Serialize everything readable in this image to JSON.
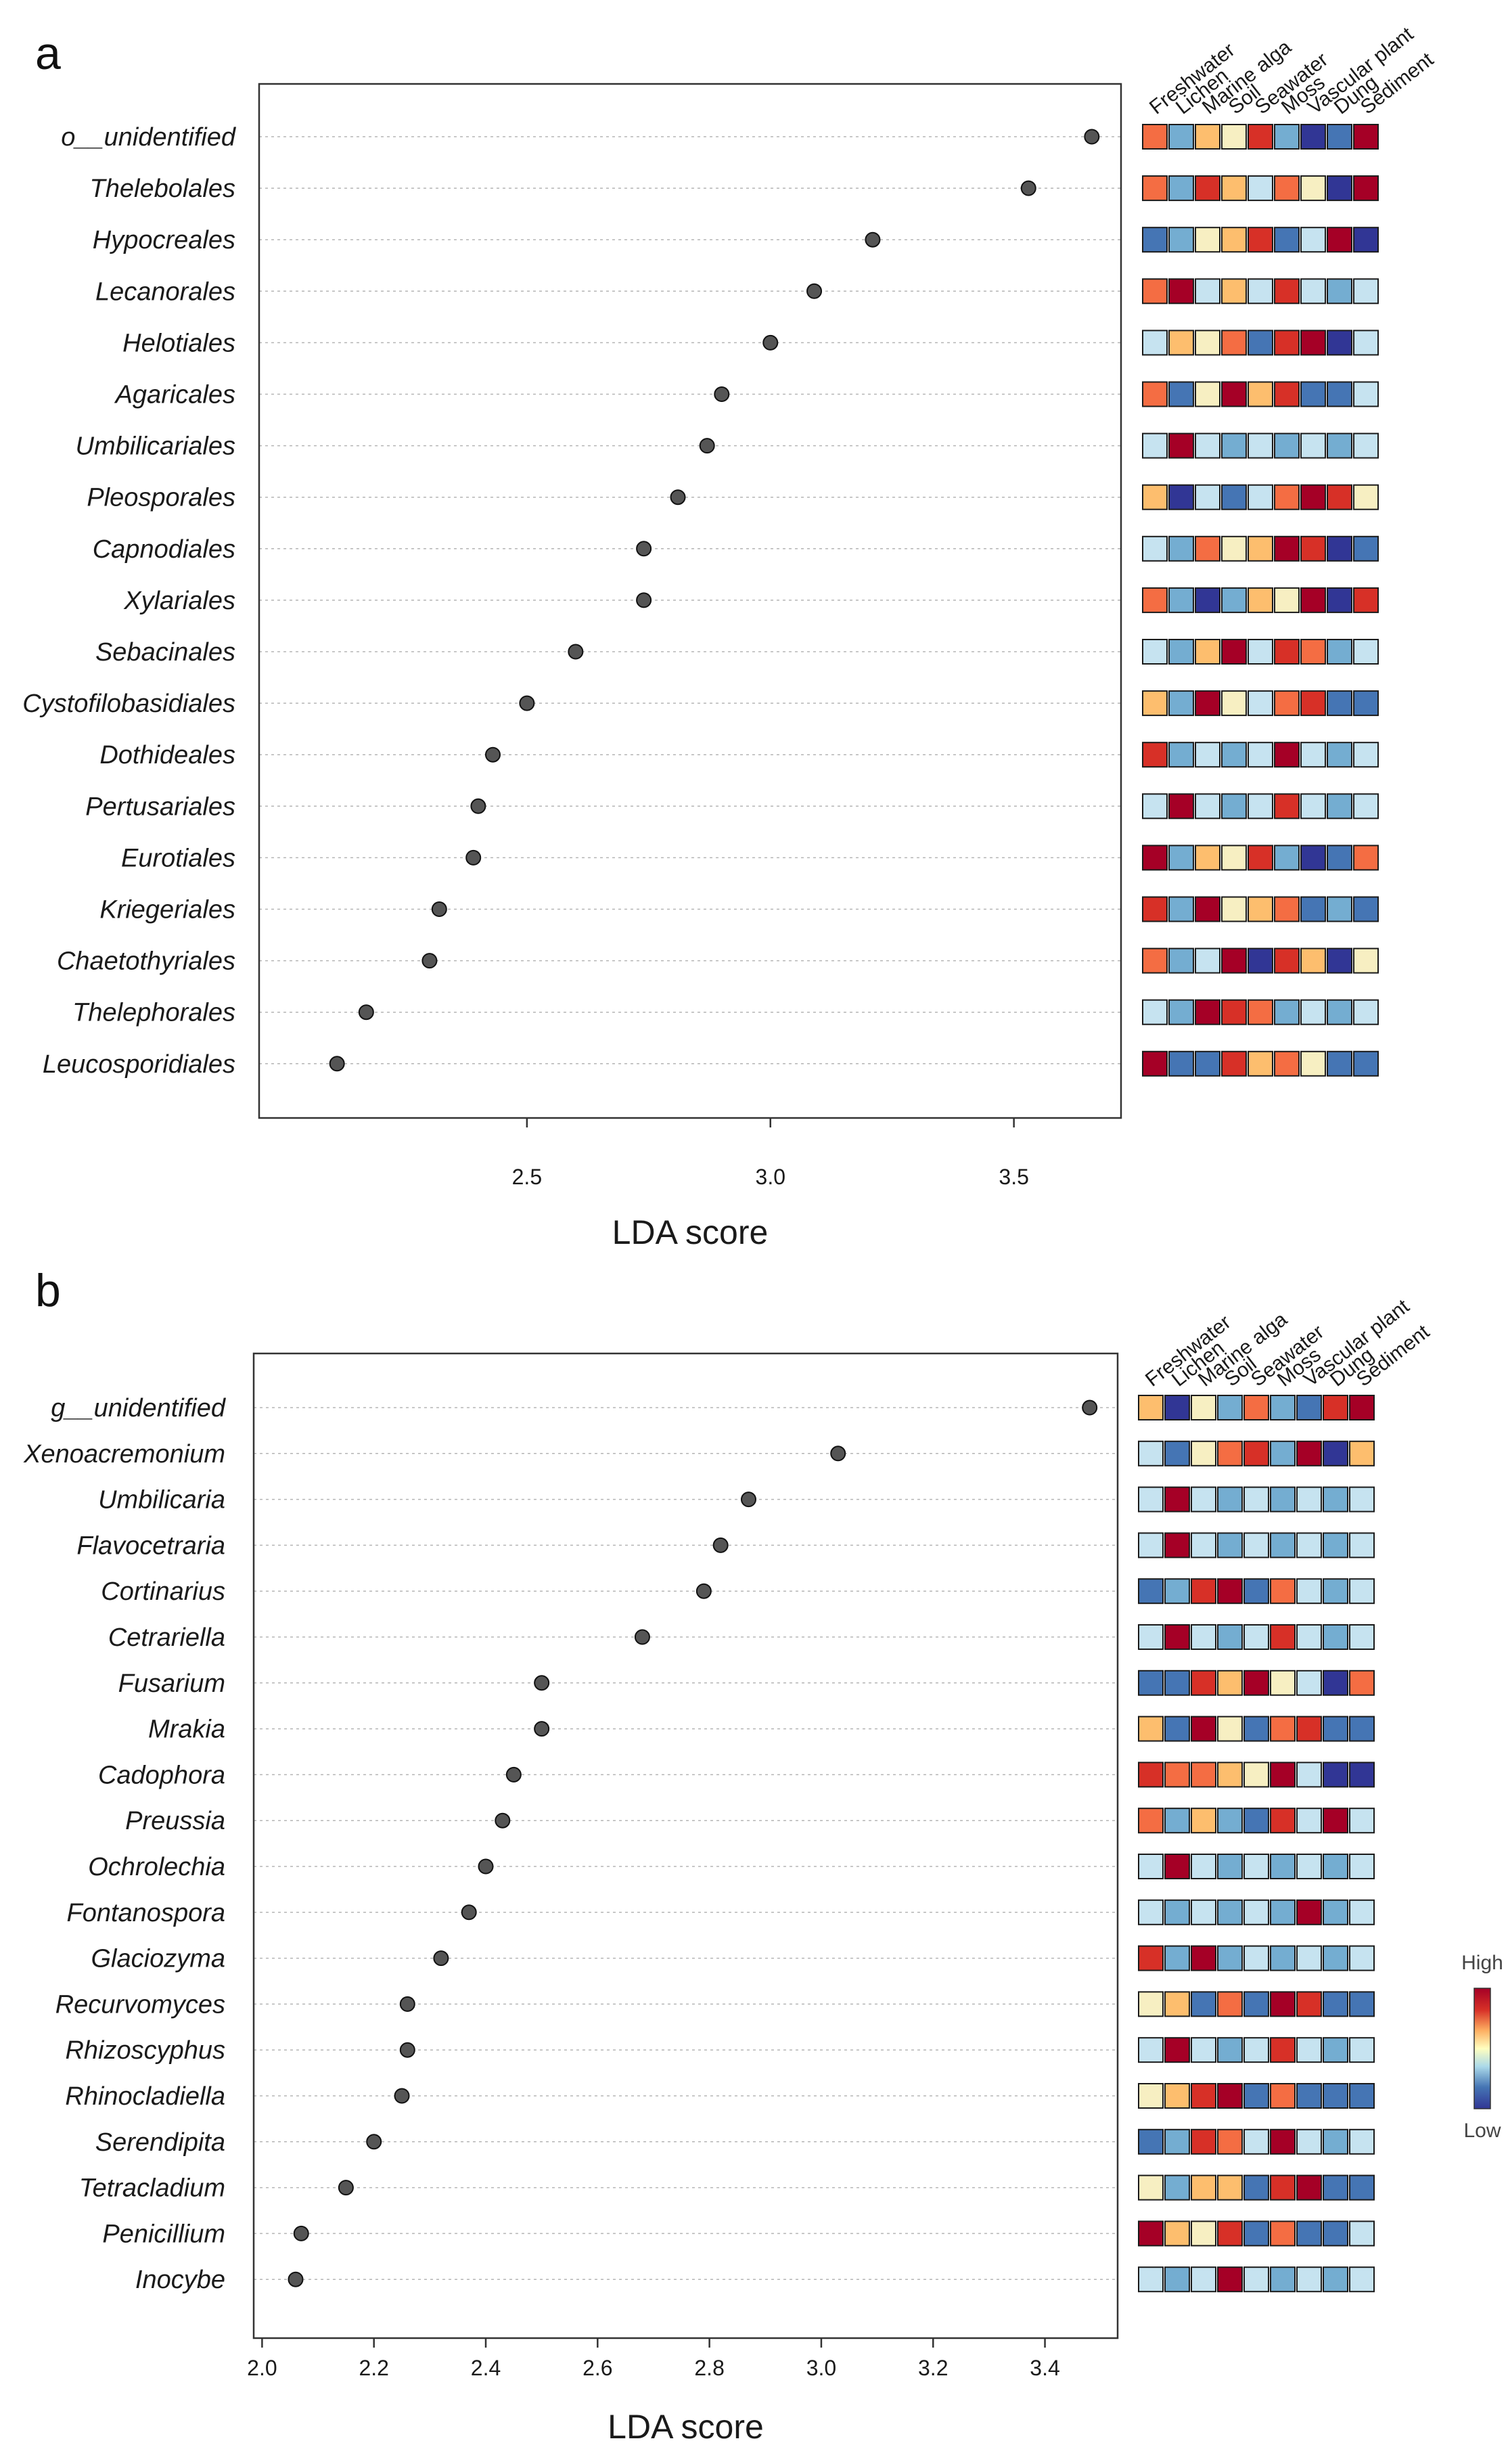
{
  "chart_data": [
    {
      "panel": "a",
      "type": "scatter",
      "subtype": "lda-dotplot-with-heatmap",
      "xlabel": "LDA score",
      "xlim": [
        1.95,
        3.72
      ],
      "xticks": [
        2.5,
        3.0,
        3.5
      ],
      "xtick_labels": [
        "2.5",
        "3.0",
        "3.5"
      ],
      "grid": "horizontal dotted",
      "taxa": [
        "o__unidentified",
        "Thelebolales",
        "Hypocreales",
        "Lecanorales",
        "Helotiales",
        "Agaricales",
        "Umbilicariales",
        "Pleosporales",
        "Capnodiales",
        "Xylariales",
        "Sebacinales",
        "Cystofilobasidiales",
        "Dothideales",
        "Pertusariales",
        "Eurotiales",
        "Kriegeriales",
        "Chaetothyriales",
        "Thelephorales",
        "Leucosporidiales"
      ],
      "values": [
        3.66,
        3.53,
        3.21,
        3.09,
        3.0,
        2.9,
        2.87,
        2.81,
        2.74,
        2.74,
        2.6,
        2.5,
        2.43,
        2.4,
        2.39,
        2.32,
        2.3,
        2.17,
        2.11
      ],
      "heatmap_columns": [
        "Freshwater",
        "Lichen",
        "Marine alga",
        "Soil",
        "Seawater",
        "Moss",
        "Vascular plant",
        "Dung",
        "Sediment"
      ],
      "heatmap": [
        [
          2,
          -1,
          1,
          0,
          3,
          -1,
          -3,
          -2,
          4
        ],
        [
          2,
          -1,
          3,
          1,
          -1,
          2,
          0,
          -3,
          4
        ],
        [
          -2,
          -1,
          0,
          1,
          3,
          -2,
          -1,
          4,
          -3
        ],
        [
          2,
          4,
          -1,
          1,
          -1,
          3,
          -1,
          -1,
          -1
        ],
        [
          -1,
          1,
          0,
          2,
          -2,
          3,
          4,
          -3,
          -1
        ],
        [
          2,
          -2,
          0,
          4,
          1,
          3,
          -2,
          -2,
          -1
        ],
        [
          -1,
          4,
          -1,
          -1,
          -1,
          -1,
          -1,
          -1,
          -1
        ],
        [
          1,
          -3,
          -1,
          -2,
          -1,
          2,
          4,
          3,
          0
        ],
        [
          -1,
          -1,
          2,
          0,
          1,
          4,
          3,
          -3,
          -2
        ],
        [
          2,
          -1,
          -3,
          -1,
          1,
          0,
          4,
          -3,
          3
        ],
        [
          -1,
          -1,
          1,
          4,
          -1,
          3,
          2,
          -1,
          -1
        ],
        [
          1,
          -1,
          4,
          0,
          -1,
          2,
          3,
          -2,
          -2
        ],
        [
          3,
          -1,
          -1,
          -1,
          -1,
          4,
          -1,
          -1,
          -1
        ],
        [
          -1,
          4,
          -1,
          -1,
          -1,
          3,
          -1,
          -1,
          -1
        ],
        [
          4,
          -1,
          1,
          0,
          3,
          -1,
          -3,
          -2,
          2
        ],
        [
          3,
          -1,
          4,
          0,
          1,
          2,
          -2,
          -1,
          -2
        ],
        [
          2,
          -1,
          -1,
          4,
          -3,
          3,
          1,
          -3,
          0
        ],
        [
          -1,
          -1,
          4,
          3,
          2,
          -1,
          -1,
          -1,
          -1
        ],
        [
          4,
          -2,
          -2,
          3,
          1,
          2,
          0,
          -2,
          -2
        ]
      ]
    },
    {
      "panel": "b",
      "type": "scatter",
      "subtype": "lda-dotplot-with-heatmap",
      "xlabel": "LDA score",
      "xlim": [
        1.985,
        3.53
      ],
      "xticks": [
        2.0,
        2.2,
        2.4,
        2.6,
        2.8,
        3.0,
        3.2,
        3.4
      ],
      "xtick_labels": [
        "2.0",
        "2.2",
        "2.4",
        "2.6",
        "2.8",
        "3.0",
        "3.2",
        "3.4"
      ],
      "grid": "horizontal dotted",
      "taxa": [
        "g__unidentified",
        "Xenoacremonium",
        "Umbilicaria",
        "Flavocetraria",
        "Cortinarius",
        "Cetrariella",
        "Fusarium",
        "Mrakia",
        "Cadophora",
        "Preussia",
        "Ochrolechia",
        "Fontanospora",
        "Glaciozyma",
        "Recurvomyces",
        "Rhizoscyphus",
        "Rhinocladiella",
        "Serendipita",
        "Tetracladium",
        "Penicillium",
        "Inocybe"
      ],
      "values": [
        3.48,
        3.03,
        2.87,
        2.82,
        2.79,
        2.68,
        2.5,
        2.5,
        2.45,
        2.43,
        2.4,
        2.37,
        2.32,
        2.26,
        2.26,
        2.25,
        2.2,
        2.15,
        2.07,
        2.06
      ],
      "heatmap_columns": [
        "Freshwater",
        "Lichen",
        "Marine alga",
        "Soil",
        "Seawater",
        "Moss",
        "Vascular plant",
        "Dung",
        "Sediment"
      ],
      "heatmap": [
        [
          1,
          -3,
          0,
          -1,
          2,
          -1,
          -2,
          3,
          4
        ],
        [
          -1,
          -2,
          0,
          2,
          3,
          -1,
          4,
          -3,
          1
        ],
        [
          -1,
          4,
          -1,
          -1,
          -1,
          -1,
          -1,
          -1,
          -1
        ],
        [
          -1,
          4,
          -1,
          -1,
          -1,
          -1,
          -1,
          -1,
          -1
        ],
        [
          -2,
          -1,
          3,
          4,
          -2,
          2,
          -1,
          -1,
          -1
        ],
        [
          -1,
          4,
          -1,
          -1,
          -1,
          3,
          -1,
          -1,
          -1
        ],
        [
          -2,
          -2,
          3,
          1,
          4,
          0,
          -1,
          -3,
          2
        ],
        [
          1,
          -2,
          4,
          0,
          -2,
          2,
          3,
          -2,
          -2
        ],
        [
          3,
          2,
          2,
          1,
          0,
          4,
          -1,
          -3,
          -3
        ],
        [
          2,
          -1,
          1,
          -1,
          -2,
          3,
          -1,
          4,
          -1
        ],
        [
          -1,
          4,
          -1,
          -1,
          -1,
          -1,
          -1,
          -1,
          -1
        ],
        [
          -1,
          -1,
          -1,
          -1,
          -1,
          -1,
          4,
          -1,
          -1
        ],
        [
          3,
          -1,
          4,
          -1,
          -1,
          -1,
          -1,
          -1,
          -1
        ],
        [
          0,
          1,
          -2,
          2,
          -2,
          4,
          3,
          -2,
          -2
        ],
        [
          -1,
          4,
          -1,
          -1,
          -1,
          3,
          -1,
          -1,
          -1
        ],
        [
          0,
          1,
          3,
          4,
          -2,
          2,
          -2,
          -2,
          -2
        ],
        [
          -2,
          -1,
          3,
          2,
          -1,
          4,
          -1,
          -1,
          -1
        ],
        [
          0,
          -1,
          1,
          1,
          -2,
          3,
          4,
          -2,
          -2
        ],
        [
          4,
          1,
          0,
          3,
          -2,
          2,
          -2,
          -2,
          -1
        ],
        [
          -1,
          -1,
          -1,
          4,
          -1,
          -1,
          -1,
          -1,
          -1
        ]
      ]
    }
  ],
  "panel_labels": [
    "a",
    "b"
  ],
  "legend": {
    "high_label": "High",
    "low_label": "Low"
  },
  "palette": {
    "-3": "#313695",
    "-2": "#4575b4",
    "-1": "#74add1",
    "-1b": "#c6e3f0",
    "0": "#f7efc2",
    "1": "#fdbe6e",
    "2": "#f46d43",
    "3": "#d73027",
    "4": "#a50026"
  },
  "point_color": "#555555"
}
